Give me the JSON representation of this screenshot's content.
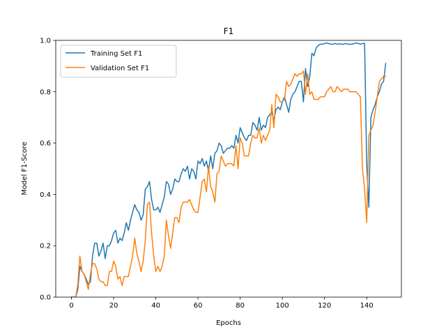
{
  "chart_data": {
    "type": "line",
    "title": "F1",
    "xlabel": "Epochs",
    "ylabel": "Model F1-Score",
    "xlim": [
      -7.45,
      156.45
    ],
    "ylim": [
      0.0,
      1.0
    ],
    "xticks": [
      0,
      20,
      40,
      60,
      80,
      100,
      120,
      140
    ],
    "yticks": [
      0.0,
      0.2,
      0.4,
      0.6,
      0.8,
      1.0
    ],
    "xtick_labels": [
      "0",
      "20",
      "40",
      "60",
      "80",
      "100",
      "120",
      "140"
    ],
    "ytick_labels": [
      "0.0",
      "0.2",
      "0.4",
      "0.6",
      "0.8",
      "1.0"
    ],
    "grid": false,
    "legend_position": "upper-left",
    "series": [
      {
        "name": "Training Set F1",
        "color": "#1f77b4",
        "x": [
          0,
          1,
          2,
          3,
          4,
          5,
          6,
          7,
          8,
          9,
          10,
          11,
          12,
          13,
          14,
          15,
          16,
          17,
          18,
          19,
          20,
          21,
          22,
          23,
          24,
          25,
          26,
          27,
          28,
          29,
          30,
          31,
          32,
          33,
          34,
          35,
          36,
          37,
          38,
          39,
          40,
          41,
          42,
          43,
          44,
          45,
          46,
          47,
          48,
          49,
          50,
          51,
          52,
          53,
          54,
          55,
          56,
          57,
          58,
          59,
          60,
          61,
          62,
          63,
          64,
          65,
          66,
          67,
          68,
          69,
          70,
          71,
          72,
          73,
          74,
          75,
          76,
          77,
          78,
          79,
          80,
          81,
          82,
          83,
          84,
          85,
          86,
          87,
          88,
          89,
          90,
          91,
          92,
          93,
          94,
          95,
          96,
          97,
          98,
          99,
          100,
          101,
          102,
          103,
          104,
          105,
          106,
          107,
          108,
          109,
          110,
          111,
          112,
          113,
          114,
          115,
          116,
          117,
          118,
          119,
          120,
          121,
          122,
          123,
          124,
          125,
          126,
          127,
          128,
          129,
          130,
          131,
          132,
          133,
          134,
          135,
          136,
          137,
          138,
          139,
          140,
          141,
          142,
          143,
          144,
          145,
          146,
          147,
          148,
          149
        ],
        "y": [
          0.0,
          0.0,
          0.0,
          0.03,
          0.12,
          0.1,
          0.09,
          0.07,
          0.05,
          0.06,
          0.16,
          0.21,
          0.21,
          0.16,
          0.18,
          0.21,
          0.15,
          0.2,
          0.2,
          0.22,
          0.25,
          0.26,
          0.21,
          0.23,
          0.22,
          0.25,
          0.29,
          0.26,
          0.3,
          0.33,
          0.36,
          0.34,
          0.33,
          0.3,
          0.32,
          0.42,
          0.43,
          0.45,
          0.38,
          0.34,
          0.34,
          0.35,
          0.33,
          0.36,
          0.39,
          0.45,
          0.44,
          0.4,
          0.42,
          0.46,
          0.45,
          0.45,
          0.48,
          0.5,
          0.49,
          0.51,
          0.46,
          0.5,
          0.49,
          0.46,
          0.53,
          0.52,
          0.54,
          0.51,
          0.53,
          0.49,
          0.55,
          0.5,
          0.56,
          0.57,
          0.6,
          0.59,
          0.56,
          0.57,
          0.58,
          0.58,
          0.59,
          0.58,
          0.63,
          0.6,
          0.66,
          0.64,
          0.62,
          0.61,
          0.63,
          0.63,
          0.68,
          0.67,
          0.65,
          0.7,
          0.65,
          0.67,
          0.66,
          0.7,
          0.71,
          0.72,
          0.69,
          0.73,
          0.74,
          0.73,
          0.76,
          0.78,
          0.75,
          0.72,
          0.77,
          0.79,
          0.8,
          0.82,
          0.84,
          0.84,
          0.76,
          0.89,
          0.82,
          0.86,
          0.95,
          0.94,
          0.97,
          0.98,
          0.985,
          0.985,
          0.988,
          0.99,
          0.988,
          0.985,
          0.985,
          0.988,
          0.985,
          0.987,
          0.985,
          0.985,
          0.988,
          0.985,
          0.985,
          0.985,
          0.987,
          0.99,
          0.988,
          0.985,
          0.988,
          0.988,
          0.52,
          0.35,
          0.7,
          0.73,
          0.75,
          0.78,
          0.8,
          0.83,
          0.84,
          0.91
        ]
      },
      {
        "name": "Validation Set F1",
        "color": "#ff7f0e",
        "x": [
          0,
          1,
          2,
          3,
          4,
          5,
          6,
          7,
          8,
          9,
          10,
          11,
          12,
          13,
          14,
          15,
          16,
          17,
          18,
          19,
          20,
          21,
          22,
          23,
          24,
          25,
          26,
          27,
          28,
          29,
          30,
          31,
          32,
          33,
          34,
          35,
          36,
          37,
          38,
          39,
          40,
          41,
          42,
          43,
          44,
          45,
          46,
          47,
          48,
          49,
          50,
          51,
          52,
          53,
          54,
          55,
          56,
          57,
          58,
          59,
          60,
          61,
          62,
          63,
          64,
          65,
          66,
          67,
          68,
          69,
          70,
          71,
          72,
          73,
          74,
          75,
          76,
          77,
          78,
          79,
          80,
          81,
          82,
          83,
          84,
          85,
          86,
          87,
          88,
          89,
          90,
          91,
          92,
          93,
          94,
          95,
          96,
          97,
          98,
          99,
          100,
          101,
          102,
          103,
          104,
          105,
          106,
          107,
          108,
          109,
          110,
          111,
          112,
          113,
          114,
          115,
          116,
          117,
          118,
          119,
          120,
          121,
          122,
          123,
          124,
          125,
          126,
          127,
          128,
          129,
          130,
          131,
          132,
          133,
          134,
          135,
          136,
          137,
          138,
          139,
          140,
          141,
          142,
          143,
          144,
          145,
          146,
          147,
          148,
          149
        ],
        "y": [
          0.0,
          0.0,
          0.0,
          0.05,
          0.16,
          0.1,
          0.09,
          0.06,
          0.03,
          0.09,
          0.13,
          0.13,
          0.11,
          0.07,
          0.06,
          0.06,
          0.045,
          0.045,
          0.1,
          0.1,
          0.14,
          0.12,
          0.07,
          0.08,
          0.045,
          0.08,
          0.08,
          0.08,
          0.12,
          0.16,
          0.23,
          0.17,
          0.14,
          0.1,
          0.14,
          0.22,
          0.36,
          0.37,
          0.25,
          0.16,
          0.1,
          0.12,
          0.1,
          0.12,
          0.16,
          0.3,
          0.24,
          0.19,
          0.25,
          0.31,
          0.31,
          0.29,
          0.35,
          0.37,
          0.37,
          0.37,
          0.38,
          0.36,
          0.34,
          0.33,
          0.33,
          0.39,
          0.45,
          0.46,
          0.41,
          0.51,
          0.43,
          0.41,
          0.37,
          0.48,
          0.49,
          0.55,
          0.53,
          0.51,
          0.52,
          0.52,
          0.52,
          0.51,
          0.59,
          0.5,
          0.62,
          0.6,
          0.55,
          0.55,
          0.55,
          0.6,
          0.63,
          0.62,
          0.62,
          0.66,
          0.6,
          0.63,
          0.61,
          0.63,
          0.65,
          0.75,
          0.66,
          0.79,
          0.78,
          0.76,
          0.76,
          0.77,
          0.84,
          0.82,
          0.83,
          0.85,
          0.87,
          0.86,
          0.87,
          0.87,
          0.88,
          0.79,
          0.87,
          0.79,
          0.8,
          0.77,
          0.77,
          0.77,
          0.78,
          0.78,
          0.78,
          0.8,
          0.81,
          0.82,
          0.8,
          0.8,
          0.82,
          0.81,
          0.8,
          0.81,
          0.81,
          0.81,
          0.8,
          0.8,
          0.8,
          0.8,
          0.79,
          0.78,
          0.5,
          0.42,
          0.29,
          0.63,
          0.65,
          0.67,
          0.72,
          0.78,
          0.84,
          0.85,
          0.86,
          0.86
        ]
      }
    ]
  }
}
